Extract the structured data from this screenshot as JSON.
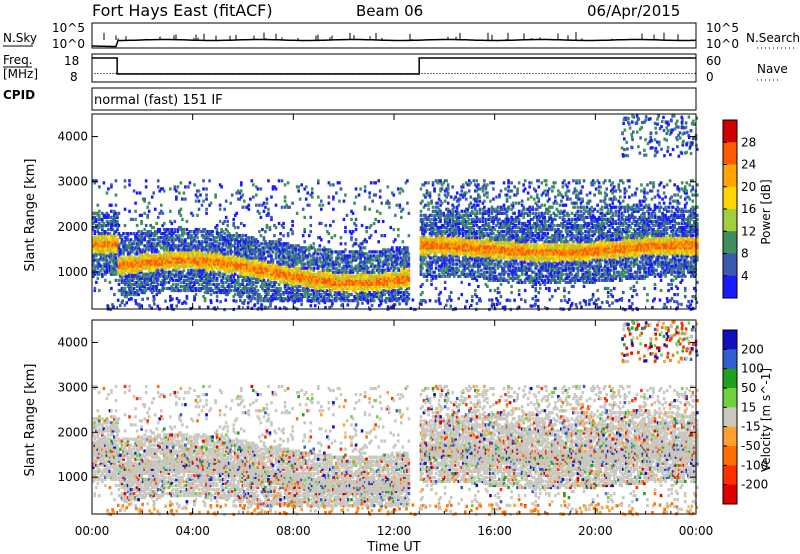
{
  "header": {
    "title": "Fort Hays East (fitACF)",
    "beam": "Beam 06",
    "date": "06/Apr/2015"
  },
  "strip": {
    "nsky_label": "N.Sky",
    "nsky_ticks": [
      "10^5",
      "10^0"
    ],
    "nsearch_label": "N.Search",
    "freq_label_line1": "Freq.",
    "freq_label_line2": "[MHz]",
    "freq_ticks": [
      "18",
      "8"
    ],
    "nave_label": "Nave",
    "nave_ticks": [
      "60",
      "0"
    ],
    "cpid_label": "CPID",
    "cpid_text": "normal (fast) 151 IF"
  },
  "chart_data": [
    {
      "type": "heatmap",
      "title": "",
      "ylabel": "Slant Range [km]",
      "xlabel": "",
      "ylim": [
        180,
        4500
      ],
      "yticks": [
        "1000",
        "2000",
        "3000",
        "4000"
      ],
      "colorbar": {
        "label": "Power [dB]",
        "ticks": [
          "28",
          "24",
          "20",
          "16",
          "12",
          "8",
          "4"
        ],
        "colors": [
          "#d00000",
          "#ff5a00",
          "#ffa500",
          "#ffd700",
          "#a0d040",
          "#3e8e5e",
          "#3a5ab0",
          "#1a1aff"
        ]
      }
    },
    {
      "type": "heatmap",
      "title": "",
      "ylabel": "Slant Range [km]",
      "xlabel": "Time UT",
      "ylim": [
        180,
        4500
      ],
      "yticks": [
        "1000",
        "2000",
        "3000",
        "4000"
      ],
      "xticks": [
        "00:00",
        "04:00",
        "08:00",
        "12:00",
        "16:00",
        "20:00",
        "00:00"
      ],
      "colorbar": {
        "label": "Velocity [m s^-1]",
        "ticks": [
          "200",
          "100",
          "50",
          "15",
          "-15",
          "-50",
          "-100",
          "-200"
        ],
        "colors": [
          "#1010c0",
          "#3060d0",
          "#20a020",
          "#70d040",
          "#c8c8c0",
          "#ffa030",
          "#ff7000",
          "#ff3000",
          "#e00000"
        ]
      }
    }
  ],
  "xaxis": {
    "label": "Time UT",
    "ticks": [
      "00:00",
      "04:00",
      "08:00",
      "12:00",
      "16:00",
      "20:00",
      "00:00"
    ]
  }
}
